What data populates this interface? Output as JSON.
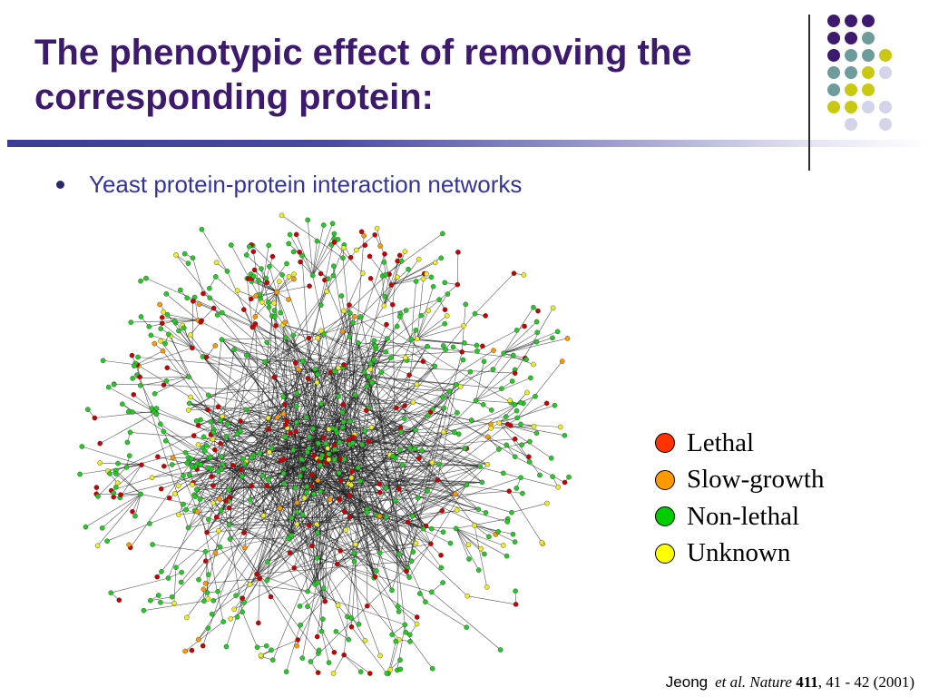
{
  "slide": {
    "title_line1": "The phenotypic effect of removing the",
    "title_line2": "corresponding protein:",
    "bullet": "Yeast protein-protein interaction networks"
  },
  "decoration": {
    "dot_colors": {
      "purple": "#3d1a6e",
      "teal": "#6e9b9b",
      "yellow": "#c9c914",
      "lavender": "#d3d3ea"
    },
    "dot_grid": [
      [
        "purple",
        "purple",
        "purple",
        ""
      ],
      [
        "purple",
        "purple",
        "teal",
        ""
      ],
      [
        "purple",
        "teal",
        "teal",
        "yellow"
      ],
      [
        "teal",
        "teal",
        "yellow",
        "lavender"
      ],
      [
        "teal",
        "yellow",
        "yellow",
        ""
      ],
      [
        "yellow",
        "yellow",
        "lavender",
        "lavender"
      ],
      [
        "",
        "lavender",
        "",
        "lavender"
      ]
    ]
  },
  "legend": {
    "items": [
      {
        "label": "Lethal",
        "color": "#ff3300"
      },
      {
        "label": "Slow-growth",
        "color": "#ff9900"
      },
      {
        "label": "Non-lethal",
        "color": "#00cc00"
      },
      {
        "label": "Unknown",
        "color": "#ffff00"
      }
    ]
  },
  "network": {
    "node_colors": {
      "lethal": "#cc0000",
      "slow_growth": "#ff9900",
      "non_lethal": "#22cc22",
      "unknown": "#eeee22"
    },
    "edge_color": "#222222"
  },
  "citation": {
    "author": "Jeong",
    "et_al": "et al.",
    "journal": "Nature",
    "volume": "411",
    "pages_year": ", 41 - 42 (2001)"
  }
}
